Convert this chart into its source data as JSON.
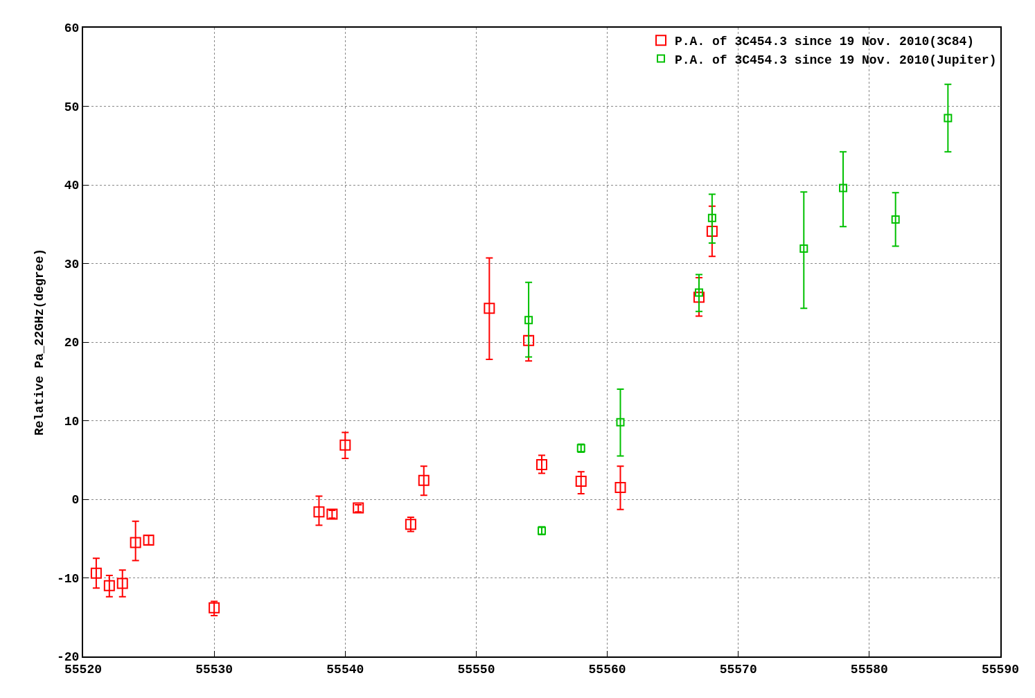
{
  "chart_data": {
    "type": "scatter",
    "ylabel": "Relative Pa_22GHz(degree)",
    "xlim": [
      55520,
      55590
    ],
    "xticks": [
      55520,
      55530,
      55540,
      55550,
      55560,
      55570,
      55580,
      55590
    ],
    "ylim": [
      -20,
      60
    ],
    "yticks": [
      -20,
      -10,
      0,
      10,
      20,
      30,
      40,
      50,
      60
    ],
    "grid": true,
    "legend": "top right",
    "marker": "square",
    "series": [
      {
        "name": "P.A. of 3C454.3 since 19 Nov. 2010(3C84)",
        "color": "#ff0000",
        "x": [
          55521,
          55522,
          55523,
          55524,
          55525,
          55530,
          55538,
          55539,
          55540,
          55541,
          55545,
          55546,
          55551,
          55554,
          55555,
          55558,
          55561,
          55567,
          55568
        ],
        "values": [
          -9.4,
          -11.0,
          -10.7,
          -5.5,
          -5.2,
          -13.8,
          -1.6,
          -1.9,
          6.9,
          -1.1,
          -3.2,
          2.4,
          24.3,
          20.2,
          4.4,
          2.3,
          1.5,
          25.7,
          34.1
        ],
        "errors": [
          [
            -11.3,
            -7.5
          ],
          [
            -12.4,
            -9.7
          ],
          [
            -12.4,
            -9.0
          ],
          [
            -7.8,
            -2.8
          ],
          [
            -5.8,
            -4.6
          ],
          [
            -14.8,
            -13.0
          ],
          [
            -3.3,
            0.4
          ],
          [
            -2.4,
            -1.4
          ],
          [
            5.2,
            8.5
          ],
          [
            -1.6,
            -0.7
          ],
          [
            -4.1,
            -2.3
          ],
          [
            0.5,
            4.2
          ],
          [
            17.8,
            30.7
          ],
          [
            17.6,
            20.8
          ],
          [
            3.3,
            5.6
          ],
          [
            0.7,
            3.5
          ],
          [
            -1.3,
            4.2
          ],
          [
            23.3,
            28.2
          ],
          [
            30.9,
            37.3
          ]
        ]
      },
      {
        "name": "P.A. of 3C454.3 since 19 Nov. 2010(Jupiter)",
        "color": "#00c000",
        "x": [
          55554,
          55555,
          55558,
          55561,
          55567,
          55568,
          55575,
          55578,
          55582,
          55586
        ],
        "values": [
          22.8,
          -4.0,
          6.5,
          9.8,
          26.3,
          35.8,
          31.9,
          39.6,
          35.6,
          48.5
        ],
        "errors": [
          [
            18.1,
            27.6
          ],
          [
            -4.5,
            -3.5
          ],
          [
            6.0,
            7.0
          ],
          [
            5.5,
            14.0
          ],
          [
            23.9,
            28.6
          ],
          [
            32.6,
            38.8
          ],
          [
            24.3,
            39.1
          ],
          [
            34.7,
            44.2
          ],
          [
            32.2,
            39.0
          ],
          [
            44.2,
            52.8
          ]
        ]
      }
    ]
  }
}
